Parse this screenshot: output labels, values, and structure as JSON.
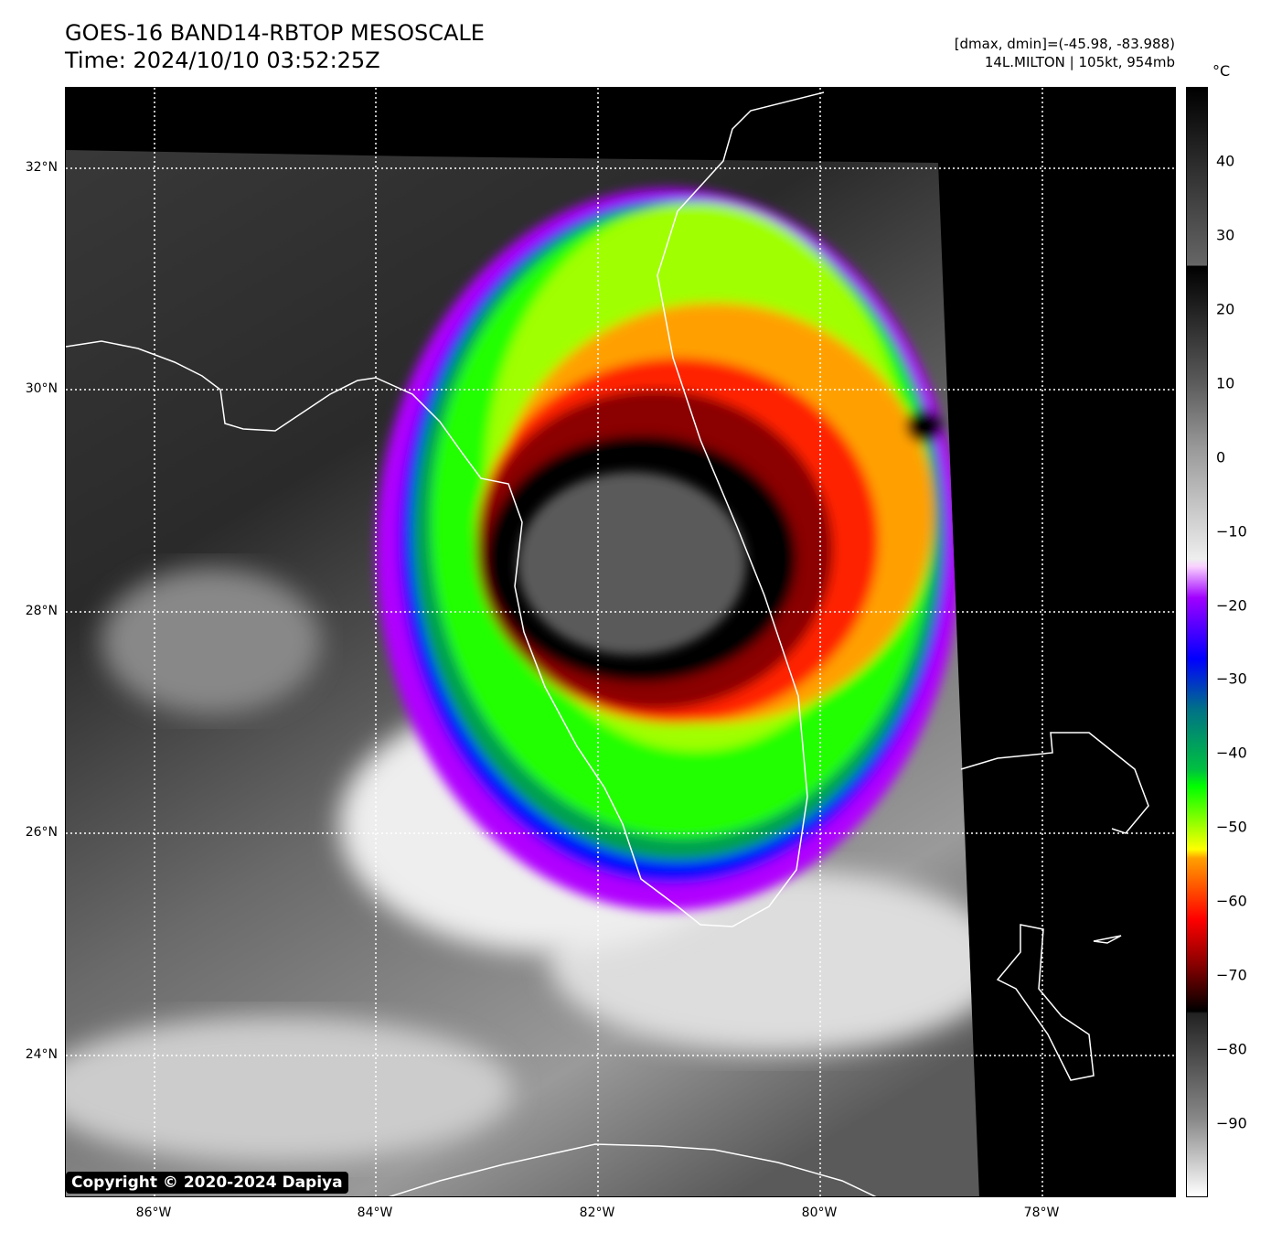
{
  "header": {
    "title": "GOES-16 BAND14-RBTOP MESOSCALE",
    "time": "Time: 2024/10/10 03:52:25Z",
    "range": "[dmax, dmin]=(-45.98, -83.988)",
    "storm": "14L.MILTON | 105kt, 954mb"
  },
  "map": {
    "lat_labels": [
      "32°N",
      "30°N",
      "28°N",
      "26°N",
      "24°N"
    ],
    "lon_labels": [
      "86°W",
      "84°W",
      "82°W",
      "80°W",
      "78°W"
    ],
    "copyright": "Copyright © 2020-2024 Dapiya"
  },
  "colorbar": {
    "unit": "°C",
    "range": [
      -100,
      50
    ],
    "ticks": [
      "40",
      "30",
      "20",
      "10",
      "0",
      "−10",
      "−20",
      "−30",
      "−40",
      "−50",
      "−60",
      "−70",
      "−80",
      "−90"
    ]
  }
}
